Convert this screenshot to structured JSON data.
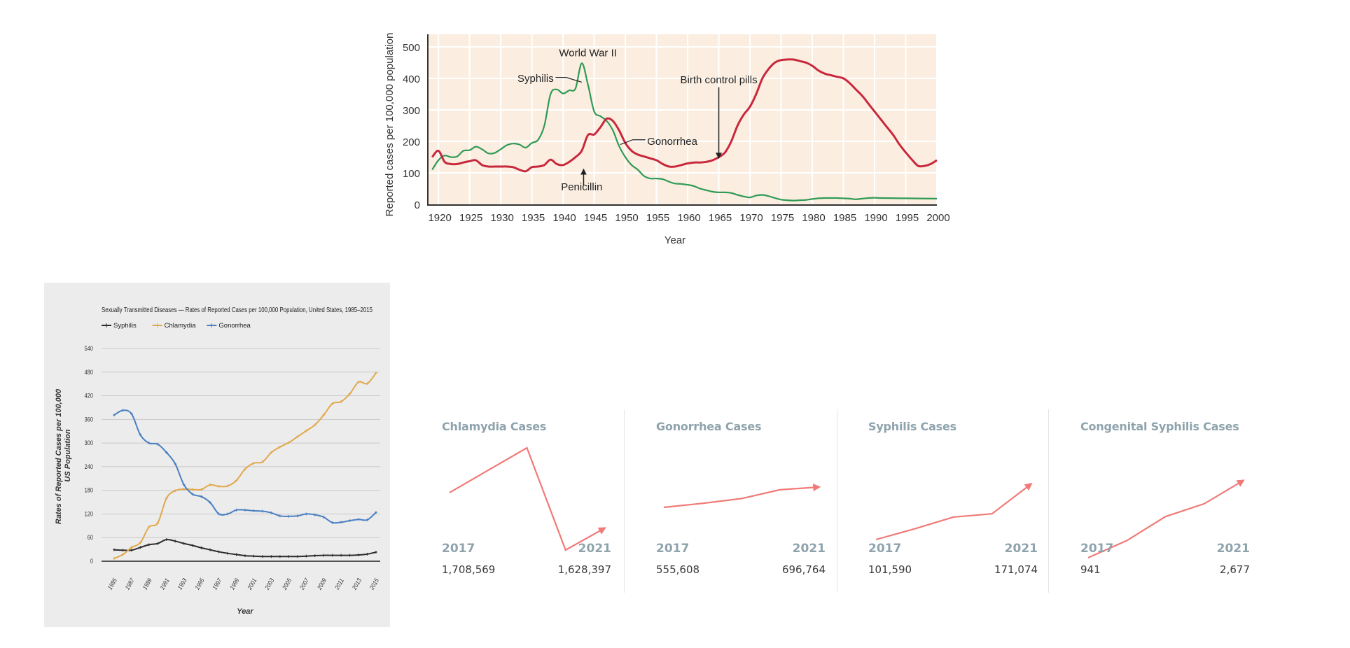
{
  "chart_data": [
    {
      "type": "line",
      "title": "",
      "xlabel": "Year",
      "ylabel": "Reported cases per 100,000 population",
      "xlim": [
        1918.3,
        2000
      ],
      "ylim": [
        0,
        540
      ],
      "xticks": [
        1920,
        1925,
        1930,
        1935,
        1940,
        1945,
        1950,
        1955,
        1960,
        1965,
        1970,
        1975,
        1980,
        1985,
        1990,
        1995,
        2000
      ],
      "yticks": [
        0,
        100,
        200,
        300,
        400,
        500
      ],
      "grid": true,
      "background": "#fbeee0",
      "series": [
        {
          "name": "Syphilis",
          "color": "#2f9a55",
          "x": [
            1919,
            1920,
            1921,
            1922,
            1923,
            1924,
            1925,
            1926,
            1927,
            1928,
            1929,
            1930,
            1931,
            1932,
            1933,
            1934,
            1935,
            1936,
            1937,
            1938,
            1939,
            1940,
            1941,
            1942,
            1943,
            1944,
            1945,
            1946,
            1947,
            1948,
            1949,
            1950,
            1951,
            1952,
            1953,
            1954,
            1955,
            1956,
            1957,
            1958,
            1959,
            1960,
            1961,
            1962,
            1963,
            1964,
            1965,
            1966,
            1967,
            1968,
            1969,
            1970,
            1971,
            1972,
            1973,
            1974,
            1975,
            1976,
            1977,
            1978,
            1979,
            1980,
            1981,
            1982,
            1983,
            1984,
            1985,
            1986,
            1987,
            1988,
            1989,
            1990,
            1991,
            1995,
            2000
          ],
          "values": [
            110,
            140,
            155,
            150,
            152,
            170,
            172,
            183,
            175,
            162,
            163,
            175,
            188,
            193,
            190,
            180,
            195,
            205,
            250,
            350,
            365,
            352,
            362,
            368,
            448,
            380,
            295,
            280,
            265,
            235,
            185,
            150,
            125,
            110,
            90,
            82,
            82,
            80,
            72,
            66,
            65,
            62,
            58,
            50,
            45,
            40,
            38,
            38,
            36,
            30,
            25,
            22,
            28,
            30,
            26,
            20,
            15,
            13,
            12,
            13,
            14,
            17,
            19,
            20,
            20,
            20,
            19,
            18,
            16,
            18,
            20,
            21,
            20,
            19,
            18
          ]
        },
        {
          "name": "Gonorrhea",
          "color": "#c8283c",
          "x": [
            1919,
            1920,
            1921,
            1922,
            1923,
            1924,
            1925,
            1926,
            1927,
            1928,
            1929,
            1930,
            1931,
            1932,
            1933,
            1934,
            1935,
            1936,
            1937,
            1938,
            1939,
            1940,
            1941,
            1942,
            1943,
            1944,
            1945,
            1946,
            1947,
            1948,
            1949,
            1950,
            1951,
            1952,
            1953,
            1954,
            1955,
            1956,
            1957,
            1958,
            1959,
            1960,
            1961,
            1962,
            1963,
            1964,
            1965,
            1966,
            1967,
            1968,
            1969,
            1970,
            1971,
            1972,
            1973,
            1974,
            1975,
            1976,
            1977,
            1978,
            1979,
            1980,
            1981,
            1982,
            1983,
            1984,
            1985,
            1986,
            1987,
            1988,
            1989,
            1990,
            1991,
            1992,
            1993,
            1994,
            1995,
            1996,
            1997,
            1998,
            1999,
            2000
          ],
          "values": [
            150,
            170,
            135,
            128,
            128,
            133,
            137,
            140,
            125,
            120,
            120,
            120,
            120,
            118,
            110,
            105,
            118,
            120,
            125,
            142,
            128,
            125,
            135,
            150,
            170,
            220,
            222,
            245,
            272,
            265,
            235,
            195,
            170,
            158,
            152,
            146,
            140,
            128,
            120,
            120,
            125,
            130,
            133,
            133,
            135,
            140,
            150,
            165,
            200,
            250,
            285,
            310,
            350,
            400,
            430,
            450,
            458,
            460,
            460,
            455,
            450,
            440,
            425,
            415,
            410,
            405,
            400,
            385,
            365,
            345,
            320,
            295,
            270,
            245,
            220,
            190,
            165,
            142,
            122,
            122,
            128,
            140
          ]
        }
      ],
      "annotations": [
        {
          "text": "World War II",
          "x": 1944,
          "y": 470
        },
        {
          "text": "Syphilis",
          "x": 1934,
          "y": 400,
          "pointer_to": [
            1943,
            405
          ]
        },
        {
          "text": "Birth control pills",
          "x": 1965,
          "y": 385,
          "arrow_to": [
            1965,
            145
          ]
        },
        {
          "text": "Gonorrhea",
          "x": 1956,
          "y": 215,
          "pointer_to": [
            1949,
            205
          ]
        },
        {
          "text": "Penicillin",
          "x": 1943,
          "y": 45,
          "arrow_to": [
            1943,
            110
          ]
        }
      ]
    },
    {
      "type": "line",
      "title": "Sexually Transmitted Diseases — Rates of Reported Cases per 100,000 Population, United States, 1985–2015",
      "xlabel": "Year",
      "ylabel": "Rates of Reported Cases per 100,000 US Population",
      "ylim": [
        0,
        540
      ],
      "yticks": [
        0,
        60,
        120,
        180,
        240,
        300,
        360,
        420,
        480,
        540
      ],
      "xticks": [
        1985,
        1987,
        1989,
        1991,
        1993,
        1995,
        1997,
        1999,
        2001,
        2003,
        2005,
        2007,
        2009,
        2011,
        2013,
        2015
      ],
      "grid": true,
      "legend": "top-left",
      "x": [
        1985,
        1986,
        1987,
        1988,
        1989,
        1990,
        1991,
        1992,
        1993,
        1994,
        1995,
        1996,
        1997,
        1998,
        1999,
        2000,
        2001,
        2002,
        2003,
        2004,
        2005,
        2006,
        2007,
        2008,
        2009,
        2010,
        2011,
        2012,
        2013,
        2014,
        2015
      ],
      "series": [
        {
          "name": "Syphilis",
          "color": "#2b2b2b",
          "values": [
            29,
            28,
            28,
            35,
            42,
            45,
            55,
            51,
            45,
            40,
            34,
            29,
            24,
            20,
            17,
            14,
            13,
            12,
            12,
            12,
            12,
            12,
            13,
            14,
            15,
            15,
            15,
            15,
            16,
            18,
            23
          ]
        },
        {
          "name": "Chlamydia",
          "color": "#e0a94e",
          "values": [
            7,
            17,
            35,
            47,
            87,
            97,
            160,
            179,
            183,
            182,
            182,
            194,
            190,
            191,
            205,
            234,
            249,
            252,
            276,
            290,
            301,
            316,
            331,
            346,
            371,
            400,
            405,
            425,
            455,
            451,
            478
          ]
        },
        {
          "name": "Gonorrhea",
          "color": "#4a7fc1",
          "values": [
            371,
            383,
            374,
            321,
            300,
            297,
            276,
            247,
            194,
            170,
            164,
            149,
            120,
            120,
            130,
            130,
            128,
            127,
            123,
            115,
            114,
            115,
            120,
            118,
            112,
            98,
            99,
            103,
            106,
            105,
            124
          ]
        }
      ]
    }
  ],
  "cards": [
    {
      "title": "Chlamydia Cases",
      "start_year": "2017",
      "end_year": "2021",
      "start_value": "1,708,569",
      "end_value": "1,628,397",
      "trend": [
        1708569,
        1758668,
        1808703,
        1579885,
        1628397
      ],
      "ydomain": [
        1557945,
        1808705
      ]
    },
    {
      "title": "Gonorrhea Cases",
      "start_year": "2017",
      "end_year": "2021",
      "start_value": "555,608",
      "end_value": "696,764",
      "trend": [
        555608,
        583405,
        616392,
        677769,
        696764
      ],
      "ydomain": [
        190550,
        969341
      ]
    },
    {
      "title": "Syphilis Cases",
      "start_year": "2017",
      "end_year": "2021",
      "start_value": "101,590",
      "end_value": "171,074",
      "trend": [
        101590,
        115045,
        129813,
        133945,
        171074
      ],
      "ydomain": [
        76083,
        216810
      ]
    },
    {
      "title": "Congenital Syphilis Cases",
      "start_year": "2017",
      "end_year": "2021",
      "start_value": "941",
      "end_value": "2,677",
      "trend": [
        941,
        1328,
        1870,
        2158,
        2677
      ],
      "ydomain": [
        894,
        3419
      ]
    }
  ],
  "colors": {
    "sparkline": "#f07a78",
    "card_label": "#8fa3ad",
    "card_value": "#3b3b3b"
  }
}
